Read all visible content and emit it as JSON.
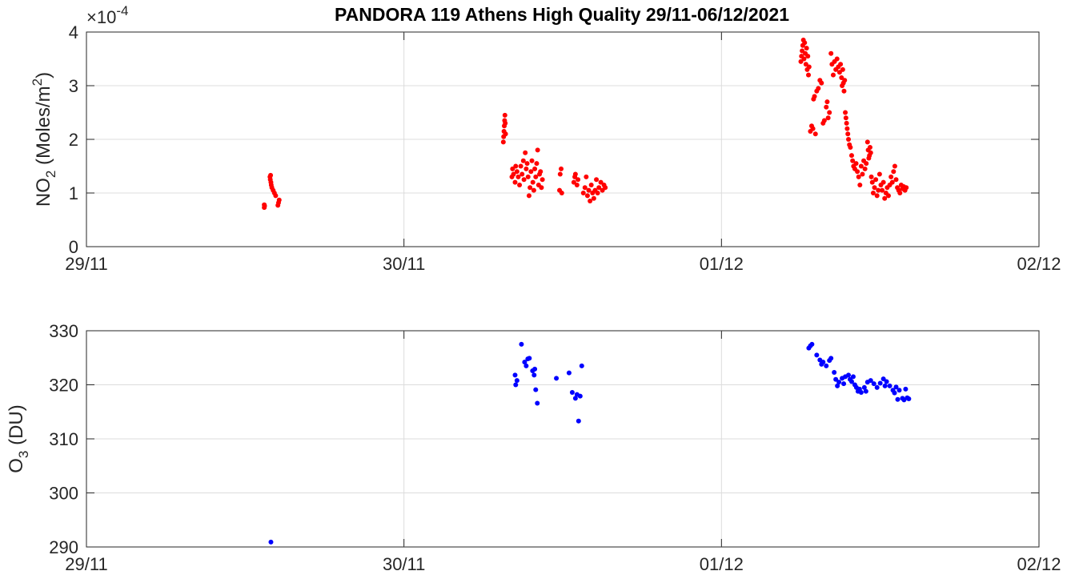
{
  "chart_data": [
    {
      "type": "scatter",
      "title": "PANDORA 119 Athens High Quality 29/11-06/12/2021",
      "ylabel_main": "NO",
      "ylabel_sub": "2",
      "ylabel_units_pre": " (Moles/m",
      "ylabel_units_sup": "2",
      "ylabel_units_post": ")",
      "exponent_label": "×10",
      "exponent_value": "-4",
      "ylim": [
        0,
        4
      ],
      "yticks": [
        "0",
        "1",
        "2",
        "3",
        "4"
      ],
      "xlim": [
        0,
        3
      ],
      "xticks": [
        "29/11",
        "30/11",
        "01/12",
        "02/12"
      ],
      "grid": true,
      "color": "#ff0000",
      "points": [
        [
          0.56,
          0.73
        ],
        [
          0.56,
          0.78
        ],
        [
          0.561,
          0.76
        ],
        [
          0.578,
          1.3
        ],
        [
          0.579,
          1.25
        ],
        [
          0.58,
          1.33
        ],
        [
          0.581,
          1.2
        ],
        [
          0.582,
          1.15
        ],
        [
          0.584,
          1.1
        ],
        [
          0.588,
          1.05
        ],
        [
          0.592,
          1.0
        ],
        [
          0.596,
          0.95
        ],
        [
          0.603,
          0.77
        ],
        [
          0.605,
          0.82
        ],
        [
          0.607,
          0.87
        ],
        [
          1.313,
          1.95
        ],
        [
          1.314,
          2.05
        ],
        [
          1.315,
          2.15
        ],
        [
          1.316,
          2.25
        ],
        [
          1.317,
          2.35
        ],
        [
          1.318,
          2.45
        ],
        [
          1.319,
          2.3
        ],
        [
          1.32,
          2.1
        ],
        [
          1.34,
          1.3
        ],
        [
          1.342,
          1.45
        ],
        [
          1.345,
          1.35
        ],
        [
          1.35,
          1.2
        ],
        [
          1.352,
          1.5
        ],
        [
          1.356,
          1.4
        ],
        [
          1.36,
          1.3
        ],
        [
          1.364,
          1.15
        ],
        [
          1.368,
          1.5
        ],
        [
          1.372,
          1.35
        ],
        [
          1.376,
          1.6
        ],
        [
          1.378,
          1.25
        ],
        [
          1.382,
          1.75
        ],
        [
          1.385,
          1.45
        ],
        [
          1.388,
          1.55
        ],
        [
          1.391,
          1.3
        ],
        [
          1.394,
          0.95
        ],
        [
          1.397,
          1.1
        ],
        [
          1.4,
          1.4
        ],
        [
          1.403,
          1.6
        ],
        [
          1.406,
          1.2
        ],
        [
          1.409,
          1.05
        ],
        [
          1.412,
          1.45
        ],
        [
          1.415,
          1.3
        ],
        [
          1.418,
          1.55
        ],
        [
          1.421,
          1.8
        ],
        [
          1.424,
          1.15
        ],
        [
          1.427,
          1.35
        ],
        [
          1.43,
          1.4
        ],
        [
          1.433,
          1.1
        ],
        [
          1.436,
          1.25
        ],
        [
          1.49,
          1.05
        ],
        [
          1.492,
          1.35
        ],
        [
          1.495,
          1.45
        ],
        [
          1.497,
          1.0
        ],
        [
          1.535,
          1.2
        ],
        [
          1.538,
          1.3
        ],
        [
          1.54,
          1.35
        ],
        [
          1.545,
          1.15
        ],
        [
          1.548,
          1.25
        ],
        [
          1.565,
          1.0
        ],
        [
          1.57,
          1.1
        ],
        [
          1.574,
          1.3
        ],
        [
          1.578,
          0.95
        ],
        [
          1.582,
          1.05
        ],
        [
          1.586,
          0.85
        ],
        [
          1.59,
          1.15
        ],
        [
          1.594,
          1.0
        ],
        [
          1.598,
          0.9
        ],
        [
          1.602,
          1.05
        ],
        [
          1.606,
          1.25
        ],
        [
          1.61,
          1.0
        ],
        [
          1.614,
          1.1
        ],
        [
          1.62,
          1.2
        ],
        [
          1.625,
          1.05
        ],
        [
          1.63,
          1.15
        ],
        [
          1.634,
          1.1
        ],
        [
          2.25,
          3.45
        ],
        [
          2.252,
          3.55
        ],
        [
          2.254,
          3.65
        ],
        [
          2.256,
          3.75
        ],
        [
          2.258,
          3.85
        ],
        [
          2.26,
          3.5
        ],
        [
          2.262,
          3.8
        ],
        [
          2.264,
          3.6
        ],
        [
          2.266,
          3.4
        ],
        [
          2.268,
          3.7
        ],
        [
          2.27,
          3.3
        ],
        [
          2.272,
          3.55
        ],
        [
          2.274,
          3.2
        ],
        [
          2.276,
          3.35
        ],
        [
          2.28,
          2.15
        ],
        [
          2.284,
          2.25
        ],
        [
          2.288,
          2.2
        ],
        [
          2.29,
          2.75
        ],
        [
          2.293,
          2.8
        ],
        [
          2.296,
          2.1
        ],
        [
          2.3,
          2.9
        ],
        [
          2.305,
          2.95
        ],
        [
          2.31,
          3.1
        ],
        [
          2.315,
          3.05
        ],
        [
          2.32,
          2.3
        ],
        [
          2.324,
          2.35
        ],
        [
          2.33,
          2.6
        ],
        [
          2.333,
          2.7
        ],
        [
          2.336,
          2.4
        ],
        [
          2.34,
          2.5
        ],
        [
          2.345,
          3.6
        ],
        [
          2.348,
          3.4
        ],
        [
          2.352,
          3.2
        ],
        [
          2.356,
          3.45
        ],
        [
          2.36,
          3.3
        ],
        [
          2.364,
          3.5
        ],
        [
          2.368,
          3.35
        ],
        [
          2.372,
          3.25
        ],
        [
          2.375,
          3.4
        ],
        [
          2.378,
          3.15
        ],
        [
          2.38,
          3.0
        ],
        [
          2.382,
          3.3
        ],
        [
          2.384,
          3.05
        ],
        [
          2.386,
          2.9
        ],
        [
          2.388,
          3.1
        ],
        [
          2.39,
          2.5
        ],
        [
          2.392,
          2.4
        ],
        [
          2.394,
          2.3
        ],
        [
          2.396,
          2.2
        ],
        [
          2.398,
          2.1
        ],
        [
          2.4,
          2.0
        ],
        [
          2.403,
          1.9
        ],
        [
          2.406,
          1.85
        ],
        [
          2.41,
          1.7
        ],
        [
          2.413,
          1.6
        ],
        [
          2.416,
          1.5
        ],
        [
          2.42,
          1.45
        ],
        [
          2.424,
          1.55
        ],
        [
          2.428,
          1.4
        ],
        [
          2.432,
          1.3
        ],
        [
          2.436,
          1.15
        ],
        [
          2.44,
          1.5
        ],
        [
          2.444,
          1.35
        ],
        [
          2.448,
          1.6
        ],
        [
          2.452,
          1.45
        ],
        [
          2.456,
          1.55
        ],
        [
          2.46,
          1.95
        ],
        [
          2.462,
          1.8
        ],
        [
          2.464,
          1.65
        ],
        [
          2.466,
          1.7
        ],
        [
          2.468,
          1.85
        ],
        [
          2.47,
          1.75
        ],
        [
          2.472,
          1.3
        ],
        [
          2.475,
          1.2
        ],
        [
          2.478,
          1.0
        ],
        [
          2.482,
          1.1
        ],
        [
          2.486,
          1.25
        ],
        [
          2.49,
          0.95
        ],
        [
          2.494,
          1.05
        ],
        [
          2.498,
          1.35
        ],
        [
          2.502,
          1.15
        ],
        [
          2.506,
          1.05
        ],
        [
          2.51,
          1.2
        ],
        [
          2.514,
          0.9
        ],
        [
          2.518,
          1.0
        ],
        [
          2.522,
          1.1
        ],
        [
          2.526,
          0.95
        ],
        [
          2.53,
          1.15
        ],
        [
          2.534,
          1.3
        ],
        [
          2.538,
          1.2
        ],
        [
          2.542,
          1.4
        ],
        [
          2.546,
          1.5
        ],
        [
          2.55,
          1.25
        ],
        [
          2.554,
          1.1
        ],
        [
          2.558,
          1.05
        ],
        [
          2.562,
          1.0
        ],
        [
          2.566,
          1.15
        ],
        [
          2.57,
          1.08
        ],
        [
          2.574,
          1.12
        ],
        [
          2.578,
          1.05
        ],
        [
          2.582,
          1.1
        ]
      ]
    },
    {
      "type": "scatter",
      "ylabel_main": "O",
      "ylabel_sub": "3",
      "ylabel_units_pre": " (DU)",
      "ylim": [
        290,
        330
      ],
      "yticks": [
        "290",
        "300",
        "310",
        "320",
        "330"
      ],
      "xlim": [
        0,
        3
      ],
      "xticks": [
        "29/11",
        "30/11",
        "01/12",
        "02/12"
      ],
      "grid": true,
      "color": "#0000ff",
      "points": [
        [
          0.581,
          290.9
        ],
        [
          1.35,
          321.8
        ],
        [
          1.352,
          320.0
        ],
        [
          1.356,
          320.8
        ],
        [
          1.37,
          327.5
        ],
        [
          1.38,
          324.2
        ],
        [
          1.385,
          323.5
        ],
        [
          1.39,
          324.8
        ],
        [
          1.395,
          324.9
        ],
        [
          1.405,
          322.6
        ],
        [
          1.41,
          321.8
        ],
        [
          1.412,
          322.9
        ],
        [
          1.415,
          319.1
        ],
        [
          1.42,
          316.6
        ],
        [
          1.48,
          321.2
        ],
        [
          1.52,
          322.2
        ],
        [
          1.53,
          318.6
        ],
        [
          1.54,
          317.5
        ],
        [
          1.545,
          318.2
        ],
        [
          1.55,
          313.3
        ],
        [
          1.555,
          317.9
        ],
        [
          1.56,
          323.5
        ],
        [
          2.275,
          326.8
        ],
        [
          2.28,
          327.2
        ],
        [
          2.285,
          327.5
        ],
        [
          2.3,
          325.5
        ],
        [
          2.31,
          324.6
        ],
        [
          2.315,
          323.8
        ],
        [
          2.32,
          324.2
        ],
        [
          2.33,
          323.5
        ],
        [
          2.34,
          324.5
        ],
        [
          2.345,
          324.9
        ],
        [
          2.355,
          322.3
        ],
        [
          2.36,
          321.0
        ],
        [
          2.365,
          319.8
        ],
        [
          2.37,
          320.5
        ],
        [
          2.38,
          321.2
        ],
        [
          2.385,
          320.2
        ],
        [
          2.39,
          321.5
        ],
        [
          2.4,
          321.8
        ],
        [
          2.405,
          321.0
        ],
        [
          2.41,
          320.6
        ],
        [
          2.415,
          321.5
        ],
        [
          2.42,
          320.0
        ],
        [
          2.425,
          319.5
        ],
        [
          2.43,
          318.8
        ],
        [
          2.435,
          319.2
        ],
        [
          2.44,
          318.6
        ],
        [
          2.45,
          319.5
        ],
        [
          2.455,
          318.8
        ],
        [
          2.46,
          320.5
        ],
        [
          2.47,
          320.8
        ],
        [
          2.48,
          320.2
        ],
        [
          2.49,
          319.5
        ],
        [
          2.5,
          320.3
        ],
        [
          2.51,
          321.1
        ],
        [
          2.515,
          319.8
        ],
        [
          2.52,
          320.6
        ],
        [
          2.53,
          319.8
        ],
        [
          2.54,
          319.0
        ],
        [
          2.545,
          318.5
        ],
        [
          2.55,
          319.6
        ],
        [
          2.555,
          317.3
        ],
        [
          2.56,
          319.0
        ],
        [
          2.57,
          317.5
        ],
        [
          2.575,
          317.2
        ],
        [
          2.58,
          319.2
        ],
        [
          2.585,
          317.6
        ],
        [
          2.59,
          317.4
        ]
      ]
    }
  ]
}
